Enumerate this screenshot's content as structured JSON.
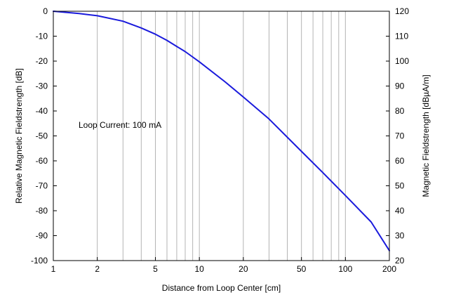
{
  "chart_data": {
    "type": "line",
    "title": "",
    "xlabel": "Distance from Loop Center [cm]",
    "ylabel": "Relative Magnetic Fieldstrength [dB]",
    "y2label": "Magnetic Fieldstrength [dBµA/m]",
    "xscale": "log",
    "xlim": [
      1,
      200
    ],
    "ylim": [
      -100,
      0
    ],
    "y2lim": [
      20,
      120
    ],
    "grid": true,
    "x_ticks": [
      1,
      2,
      5,
      10,
      20,
      50,
      100,
      200
    ],
    "x_tick_labels": [
      "1",
      "2",
      "5",
      "10",
      "20",
      "50",
      "100",
      "200"
    ],
    "x_grid_values": [
      2,
      3,
      4,
      5,
      6,
      7,
      8,
      9,
      10,
      20,
      30,
      40,
      50,
      60,
      70,
      80,
      90,
      100
    ],
    "y_ticks": [
      0,
      -10,
      -20,
      -30,
      -40,
      -50,
      -60,
      -70,
      -80,
      -90,
      -100
    ],
    "y_tick_labels": [
      "0",
      "-10",
      "-20",
      "-30",
      "-40",
      "-50",
      "-60",
      "-70",
      "-80",
      "-90",
      "-100"
    ],
    "y2_ticks": [
      120,
      110,
      100,
      90,
      80,
      70,
      60,
      50,
      40,
      30,
      20
    ],
    "y2_tick_labels": [
      "120",
      "110",
      "100",
      "90",
      "80",
      "70",
      "60",
      "50",
      "40",
      "30",
      "20"
    ],
    "annotation": "Loop Current: 100 mA",
    "series": [
      {
        "name": "Relative Magnetic Fieldstrength",
        "color": "#1a1adc",
        "x": [
          1,
          1.5,
          2,
          3,
          4,
          5,
          6,
          7,
          8,
          10,
          15,
          20,
          30,
          50,
          70,
          100,
          150,
          200
        ],
        "y": [
          0,
          -0.9,
          -1.8,
          -4,
          -6.7,
          -9.2,
          -11.7,
          -14.1,
          -16.2,
          -20.3,
          -28.3,
          -34.4,
          -43.2,
          -56.2,
          -64.7,
          -73.9,
          -84.5,
          -96
        ]
      }
    ]
  }
}
